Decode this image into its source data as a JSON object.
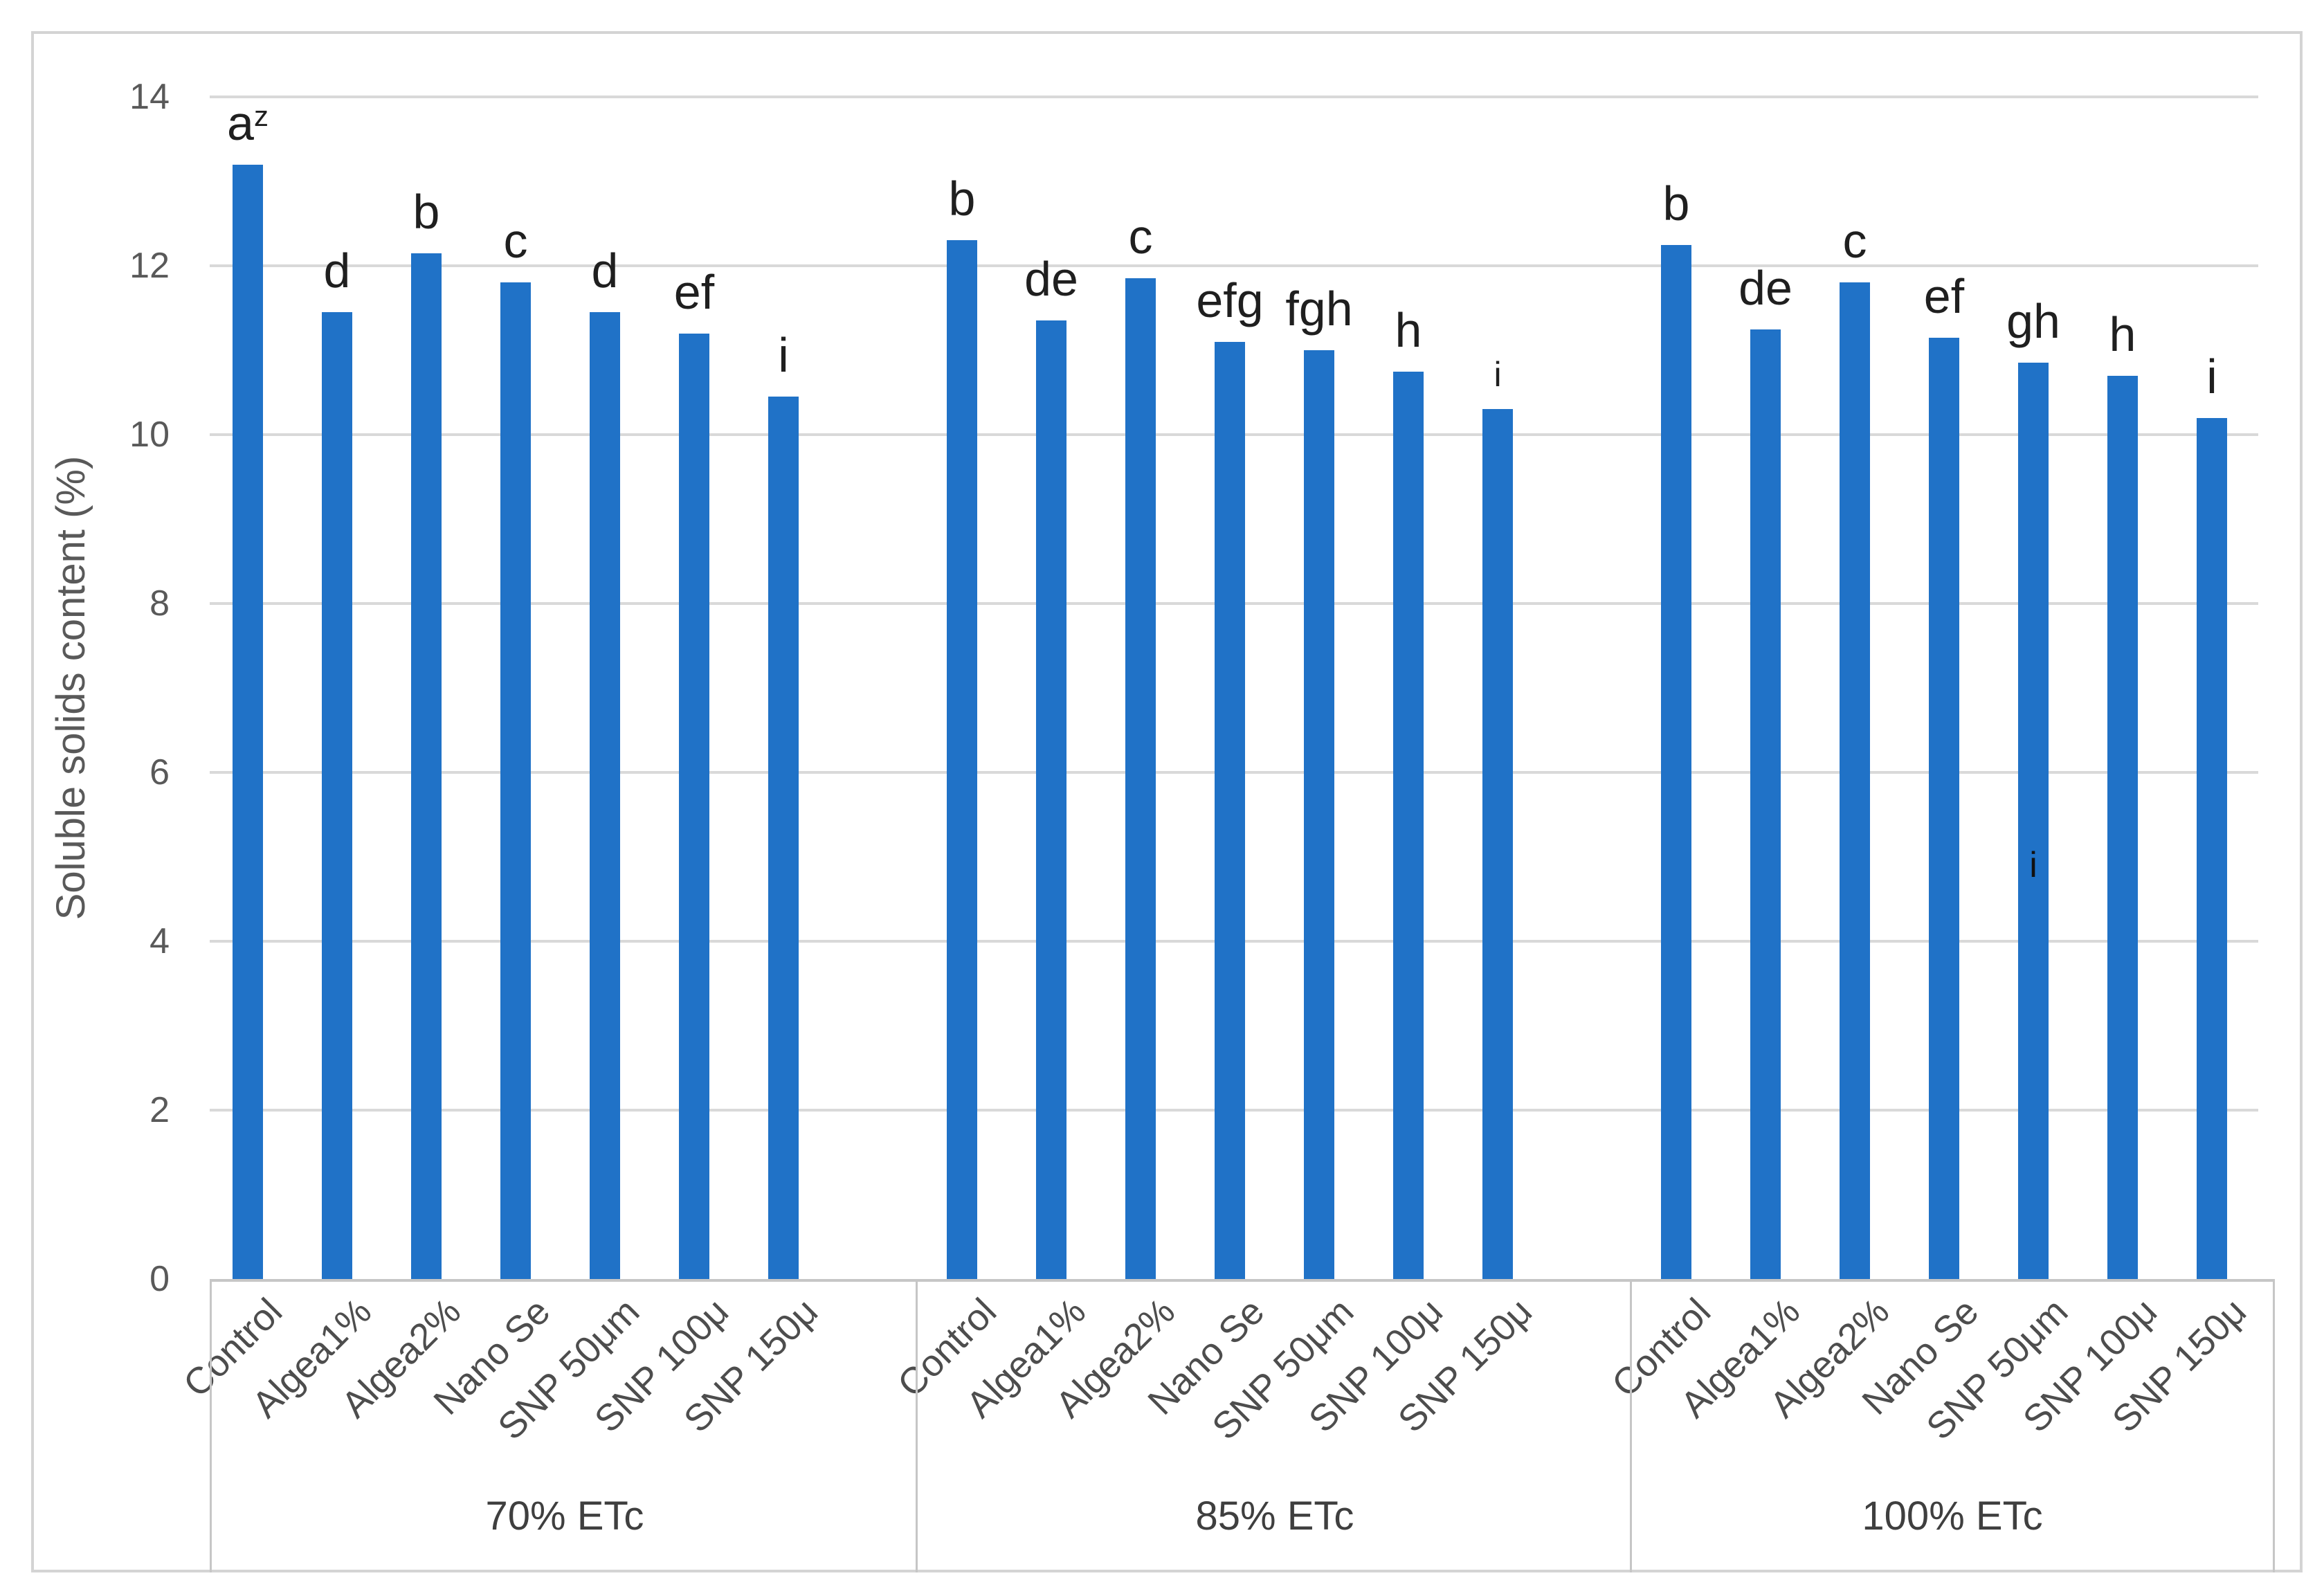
{
  "figure": {
    "y_axis_title": "Soluble solids content (%)",
    "style": {
      "bar_color": "#2072c7",
      "gridline_color": "#d9d9d9",
      "axis_line_color": "#c6c6c6",
      "figure_border_color": "#d4d4d4",
      "tick_text_color": "#595959",
      "letter_text_color": "#1f1f1f",
      "group_text_color": "#3f3f3f"
    }
  },
  "chart_data": {
    "type": "bar",
    "title": "",
    "xlabel": "",
    "ylabel": "Soluble solids content (%)",
    "ylim": [
      0,
      14
    ],
    "yticks": [
      0,
      2,
      4,
      6,
      8,
      10,
      12,
      14
    ],
    "grid": true,
    "legend": false,
    "categories": [
      "Control",
      "Algea1%",
      "Algea2%",
      "Nano Se",
      "SNP 50μm",
      "SNP 100μ",
      "SNP 150μ"
    ],
    "groups": [
      {
        "label": "70% ETc",
        "values": [
          13.2,
          11.45,
          12.15,
          11.8,
          11.45,
          11.2,
          10.45
        ],
        "letters": [
          {
            "t": "a",
            "sup": "z"
          },
          {
            "t": "d"
          },
          {
            "t": "b"
          },
          {
            "t": "c"
          },
          {
            "t": "d"
          },
          {
            "t": "ef"
          },
          {
            "t": "i"
          }
        ]
      },
      {
        "label": "85% ETc",
        "values": [
          12.3,
          11.35,
          11.85,
          11.1,
          11.0,
          10.75,
          10.3
        ],
        "letters": [
          {
            "t": "b"
          },
          {
            "t": "de"
          },
          {
            "t": "c"
          },
          {
            "t": "efg"
          },
          {
            "t": "fgh"
          },
          {
            "t": "h"
          },
          {
            "t": "i",
            "small": true
          }
        ]
      },
      {
        "label": "100% ETc",
        "values": [
          12.25,
          11.25,
          11.8,
          11.15,
          10.85,
          10.7,
          10.2
        ],
        "letters": [
          {
            "t": "b"
          },
          {
            "t": "de"
          },
          {
            "t": "c"
          },
          {
            "t": "ef"
          },
          {
            "t": "gh"
          },
          {
            "t": "h"
          },
          {
            "t": "i"
          }
        ]
      }
    ],
    "annotations": [
      {
        "text": "i",
        "group_index": 2,
        "bar_index": 4,
        "value": 4.9,
        "placement": "inside-bar"
      }
    ]
  }
}
